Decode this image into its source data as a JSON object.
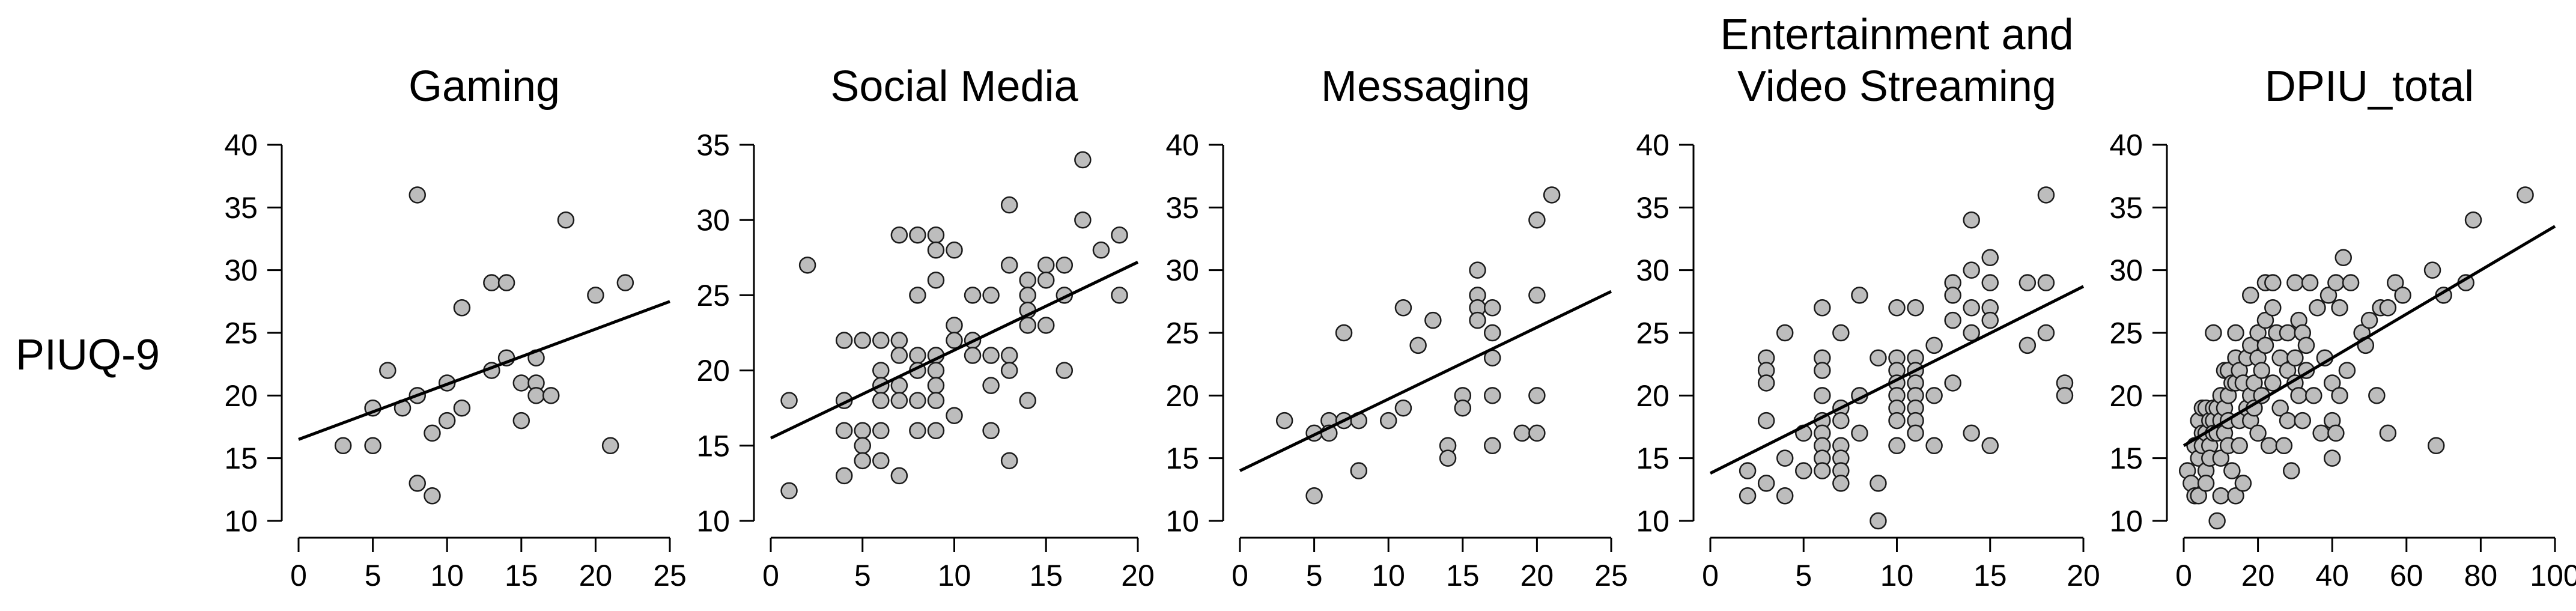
{
  "row_label": "PIUQ-9",
  "chart_data": [
    {
      "type": "scatter",
      "title": "Gaming",
      "xlim": [
        0,
        25
      ],
      "ylim": [
        10,
        40
      ],
      "xticks": [
        0,
        5,
        10,
        15,
        20,
        25
      ],
      "yticks": [
        10,
        15,
        20,
        25,
        30,
        35,
        40
      ],
      "regression": [
        [
          0,
          16.5
        ],
        [
          25,
          27.5
        ]
      ],
      "points": [
        [
          3,
          16
        ],
        [
          5,
          16
        ],
        [
          5,
          19
        ],
        [
          6,
          22
        ],
        [
          7,
          19
        ],
        [
          8,
          36
        ],
        [
          8,
          13
        ],
        [
          8,
          20
        ],
        [
          9,
          12
        ],
        [
          9,
          17
        ],
        [
          10,
          18
        ],
        [
          10,
          21
        ],
        [
          11,
          19
        ],
        [
          11,
          27
        ],
        [
          13,
          22
        ],
        [
          13,
          29
        ],
        [
          14,
          29
        ],
        [
          14,
          23
        ],
        [
          15,
          18
        ],
        [
          15,
          21
        ],
        [
          16,
          23
        ],
        [
          16,
          21
        ],
        [
          16,
          20
        ],
        [
          17,
          20
        ],
        [
          18,
          34
        ],
        [
          20,
          28
        ],
        [
          21,
          16
        ],
        [
          22,
          29
        ]
      ]
    },
    {
      "type": "scatter",
      "title": "Social Media",
      "xlim": [
        0,
        20
      ],
      "ylim": [
        10,
        35
      ],
      "xticks": [
        0,
        5,
        10,
        15,
        20
      ],
      "yticks": [
        10,
        15,
        20,
        25,
        30,
        35
      ],
      "regression": [
        [
          0,
          15.5
        ],
        [
          20,
          27.2
        ]
      ],
      "points": [
        [
          1,
          18
        ],
        [
          1,
          12
        ],
        [
          2,
          27
        ],
        [
          4,
          22
        ],
        [
          4,
          18
        ],
        [
          4,
          16
        ],
        [
          4,
          13
        ],
        [
          5,
          22
        ],
        [
          5,
          16
        ],
        [
          5,
          15
        ],
        [
          5,
          14
        ],
        [
          6,
          22
        ],
        [
          6,
          20
        ],
        [
          6,
          19
        ],
        [
          6,
          18
        ],
        [
          6,
          16
        ],
        [
          6,
          14
        ],
        [
          7,
          29
        ],
        [
          7,
          22
        ],
        [
          7,
          21
        ],
        [
          7,
          19
        ],
        [
          7,
          18
        ],
        [
          7,
          13
        ],
        [
          8,
          29
        ],
        [
          8,
          25
        ],
        [
          8,
          21
        ],
        [
          8,
          20
        ],
        [
          8,
          18
        ],
        [
          8,
          16
        ],
        [
          9,
          29
        ],
        [
          9,
          28
        ],
        [
          9,
          26
        ],
        [
          9,
          21
        ],
        [
          9,
          20
        ],
        [
          9,
          19
        ],
        [
          9,
          18
        ],
        [
          9,
          16
        ],
        [
          10,
          28
        ],
        [
          10,
          23
        ],
        [
          10,
          22
        ],
        [
          10,
          17
        ],
        [
          11,
          25
        ],
        [
          11,
          22
        ],
        [
          11,
          21
        ],
        [
          12,
          25
        ],
        [
          12,
          21
        ],
        [
          12,
          19
        ],
        [
          12,
          16
        ],
        [
          13,
          31
        ],
        [
          13,
          27
        ],
        [
          13,
          21
        ],
        [
          13,
          20
        ],
        [
          13,
          14
        ],
        [
          14,
          26
        ],
        [
          14,
          25
        ],
        [
          14,
          24
        ],
        [
          14,
          23
        ],
        [
          14,
          18
        ],
        [
          15,
          27
        ],
        [
          15,
          26
        ],
        [
          15,
          23
        ],
        [
          16,
          27
        ],
        [
          16,
          25
        ],
        [
          16,
          20
        ],
        [
          17,
          34
        ],
        [
          17,
          30
        ],
        [
          18,
          28
        ],
        [
          19,
          29
        ],
        [
          19,
          25
        ]
      ]
    },
    {
      "type": "scatter",
      "title": "Messaging",
      "xlim": [
        0,
        25
      ],
      "ylim": [
        10,
        40
      ],
      "xticks": [
        0,
        5,
        10,
        15,
        20,
        25
      ],
      "yticks": [
        10,
        15,
        20,
        25,
        30,
        35,
        40
      ],
      "regression": [
        [
          0,
          14
        ],
        [
          25,
          28.3
        ]
      ],
      "points": [
        [
          3,
          18
        ],
        [
          5,
          17
        ],
        [
          5,
          12
        ],
        [
          6,
          18
        ],
        [
          6,
          17
        ],
        [
          7,
          25
        ],
        [
          7,
          18
        ],
        [
          8,
          18
        ],
        [
          8,
          14
        ],
        [
          10,
          18
        ],
        [
          11,
          27
        ],
        [
          11,
          19
        ],
        [
          12,
          24
        ],
        [
          13,
          26
        ],
        [
          14,
          16
        ],
        [
          14,
          15
        ],
        [
          15,
          20
        ],
        [
          15,
          19
        ],
        [
          16,
          30
        ],
        [
          16,
          28
        ],
        [
          16,
          27
        ],
        [
          16,
          26
        ],
        [
          17,
          27
        ],
        [
          17,
          25
        ],
        [
          17,
          23
        ],
        [
          17,
          20
        ],
        [
          17,
          16
        ],
        [
          19,
          17
        ],
        [
          20,
          34
        ],
        [
          20,
          28
        ],
        [
          20,
          20
        ],
        [
          20,
          17
        ],
        [
          21,
          36
        ]
      ]
    },
    {
      "type": "scatter",
      "title": "Entertainment and Video Streaming",
      "xlim": [
        0,
        20
      ],
      "ylim": [
        10,
        40
      ],
      "xticks": [
        0,
        5,
        10,
        15,
        20
      ],
      "yticks": [
        10,
        15,
        20,
        25,
        30,
        35,
        40
      ],
      "regression": [
        [
          0,
          13.8
        ],
        [
          20,
          28.7
        ]
      ],
      "points": [
        [
          2,
          14
        ],
        [
          2,
          12
        ],
        [
          3,
          23
        ],
        [
          3,
          22
        ],
        [
          3,
          21
        ],
        [
          3,
          18
        ],
        [
          3,
          13
        ],
        [
          4,
          25
        ],
        [
          4,
          15
        ],
        [
          4,
          12
        ],
        [
          5,
          17
        ],
        [
          5,
          14
        ],
        [
          6,
          27
        ],
        [
          6,
          23
        ],
        [
          6,
          22
        ],
        [
          6,
          20
        ],
        [
          6,
          18
        ],
        [
          6,
          17
        ],
        [
          6,
          16
        ],
        [
          6,
          15
        ],
        [
          6,
          14
        ],
        [
          7,
          25
        ],
        [
          7,
          19
        ],
        [
          7,
          18
        ],
        [
          7,
          16
        ],
        [
          7,
          15
        ],
        [
          7,
          14
        ],
        [
          7,
          13
        ],
        [
          8,
          28
        ],
        [
          8,
          20
        ],
        [
          8,
          17
        ],
        [
          9,
          23
        ],
        [
          9,
          13
        ],
        [
          9,
          10
        ],
        [
          10,
          27
        ],
        [
          10,
          23
        ],
        [
          10,
          22
        ],
        [
          10,
          21
        ],
        [
          10,
          20
        ],
        [
          10,
          19
        ],
        [
          10,
          18
        ],
        [
          10,
          16
        ],
        [
          11,
          27
        ],
        [
          11,
          23
        ],
        [
          11,
          22
        ],
        [
          11,
          21
        ],
        [
          11,
          20
        ],
        [
          11,
          19
        ],
        [
          11,
          18
        ],
        [
          11,
          17
        ],
        [
          12,
          24
        ],
        [
          12,
          20
        ],
        [
          12,
          16
        ],
        [
          13,
          29
        ],
        [
          13,
          28
        ],
        [
          13,
          26
        ],
        [
          13,
          21
        ],
        [
          14,
          34
        ],
        [
          14,
          30
        ],
        [
          14,
          27
        ],
        [
          14,
          25
        ],
        [
          14,
          17
        ],
        [
          15,
          31
        ],
        [
          15,
          29
        ],
        [
          15,
          27
        ],
        [
          15,
          26
        ],
        [
          15,
          16
        ],
        [
          17,
          24
        ],
        [
          17,
          29
        ],
        [
          18,
          36
        ],
        [
          18,
          29
        ],
        [
          18,
          25
        ],
        [
          19,
          21
        ],
        [
          19,
          20
        ]
      ]
    },
    {
      "type": "scatter",
      "title": "DPIU_total",
      "xlim": [
        0,
        100
      ],
      "ylim": [
        10,
        40
      ],
      "xticks": [
        0,
        20,
        40,
        60,
        80,
        100
      ],
      "yticks": [
        10,
        15,
        20,
        25,
        30,
        35,
        40
      ],
      "regression": [
        [
          0,
          16
        ],
        [
          100,
          33.5
        ]
      ],
      "points": [
        [
          1,
          14
        ],
        [
          2,
          13
        ],
        [
          3,
          16
        ],
        [
          3,
          12
        ],
        [
          4,
          18
        ],
        [
          4,
          15
        ],
        [
          4,
          12
        ],
        [
          5,
          19
        ],
        [
          5,
          17
        ],
        [
          5,
          16
        ],
        [
          6,
          19
        ],
        [
          6,
          17
        ],
        [
          6,
          14
        ],
        [
          6,
          13
        ],
        [
          7,
          18
        ],
        [
          7,
          16
        ],
        [
          7,
          15
        ],
        [
          8,
          25
        ],
        [
          8,
          19
        ],
        [
          8,
          18
        ],
        [
          8,
          17
        ],
        [
          9,
          19
        ],
        [
          9,
          17
        ],
        [
          9,
          10
        ],
        [
          10,
          20
        ],
        [
          10,
          18
        ],
        [
          10,
          15
        ],
        [
          10,
          12
        ],
        [
          11,
          22
        ],
        [
          11,
          19
        ],
        [
          11,
          17
        ],
        [
          12,
          22
        ],
        [
          12,
          20
        ],
        [
          12,
          18
        ],
        [
          12,
          16
        ],
        [
          13,
          21
        ],
        [
          13,
          14
        ],
        [
          14,
          25
        ],
        [
          14,
          23
        ],
        [
          14,
          21
        ],
        [
          14,
          12
        ],
        [
          15,
          22
        ],
        [
          15,
          18
        ],
        [
          15,
          16
        ],
        [
          16,
          21
        ],
        [
          16,
          13
        ],
        [
          17,
          23
        ],
        [
          17,
          19
        ],
        [
          18,
          28
        ],
        [
          18,
          24
        ],
        [
          18,
          20
        ],
        [
          18,
          18
        ],
        [
          19,
          21
        ],
        [
          19,
          19
        ],
        [
          20,
          25
        ],
        [
          20,
          23
        ],
        [
          20,
          17
        ],
        [
          21,
          22
        ],
        [
          21,
          20
        ],
        [
          22,
          29
        ],
        [
          22,
          26
        ],
        [
          22,
          24
        ],
        [
          23,
          16
        ],
        [
          24,
          29
        ],
        [
          24,
          27
        ],
        [
          24,
          21
        ],
        [
          25,
          25
        ],
        [
          26,
          23
        ],
        [
          26,
          19
        ],
        [
          27,
          16
        ],
        [
          28,
          25
        ],
        [
          28,
          22
        ],
        [
          28,
          18
        ],
        [
          29,
          14
        ],
        [
          30,
          29
        ],
        [
          30,
          23
        ],
        [
          30,
          21
        ],
        [
          31,
          26
        ],
        [
          31,
          20
        ],
        [
          32,
          25
        ],
        [
          32,
          18
        ],
        [
          33,
          24
        ],
        [
          33,
          22
        ],
        [
          34,
          29
        ],
        [
          35,
          20
        ],
        [
          36,
          27
        ],
        [
          37,
          17
        ],
        [
          38,
          23
        ],
        [
          39,
          28
        ],
        [
          40,
          21
        ],
        [
          40,
          18
        ],
        [
          40,
          15
        ],
        [
          41,
          29
        ],
        [
          41,
          17
        ],
        [
          42,
          27
        ],
        [
          42,
          20
        ],
        [
          43,
          31
        ],
        [
          44,
          22
        ],
        [
          45,
          29
        ],
        [
          48,
          25
        ],
        [
          49,
          24
        ],
        [
          50,
          26
        ],
        [
          52,
          20
        ],
        [
          53,
          27
        ],
        [
          55,
          27
        ],
        [
          55,
          17
        ],
        [
          57,
          29
        ],
        [
          59,
          28
        ],
        [
          67,
          30
        ],
        [
          68,
          16
        ],
        [
          70,
          28
        ],
        [
          76,
          29
        ],
        [
          78,
          34
        ],
        [
          92,
          36
        ]
      ]
    }
  ]
}
